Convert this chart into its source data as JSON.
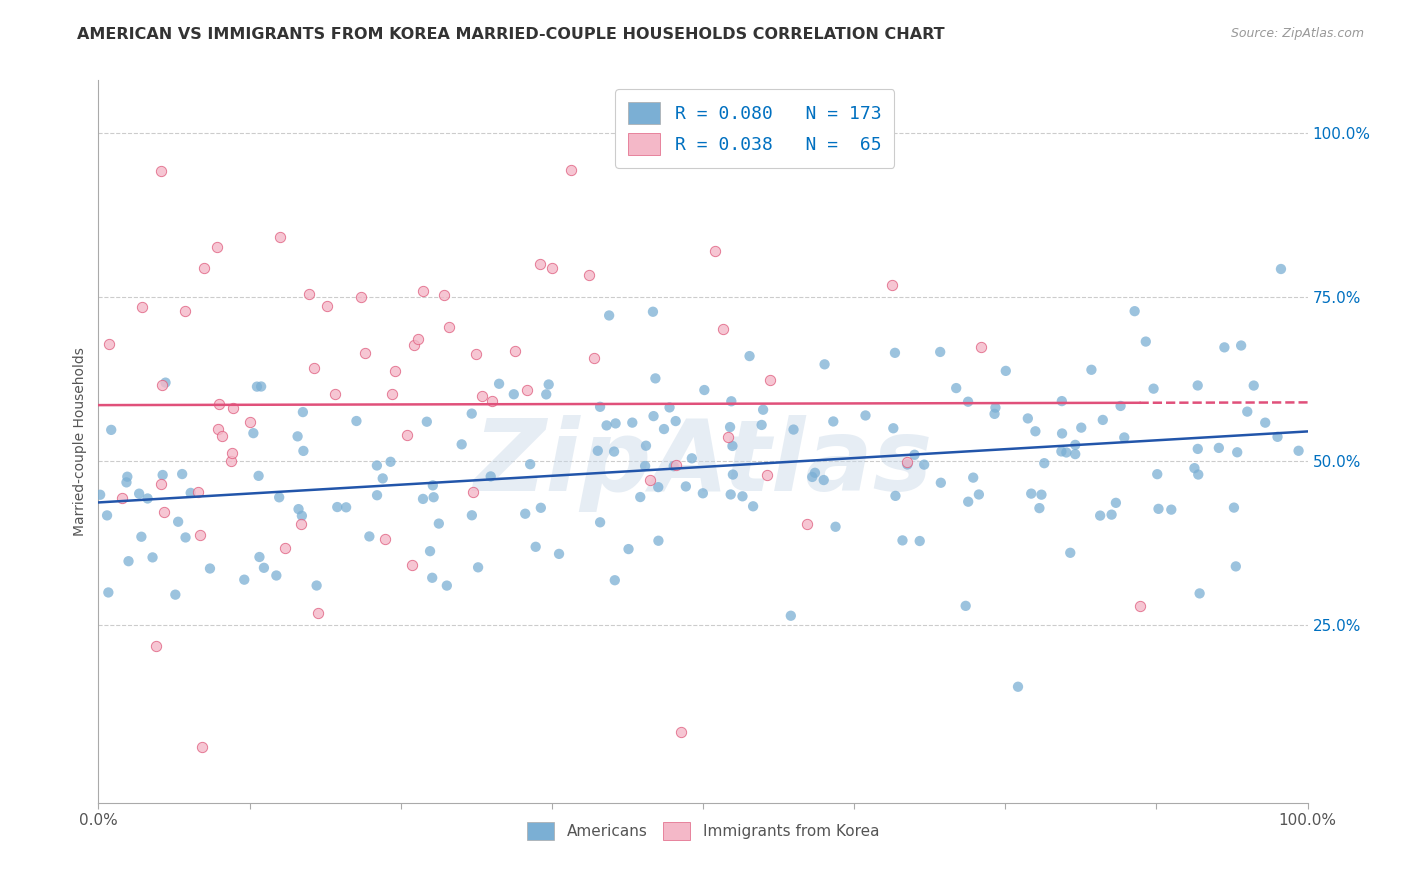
{
  "title": "AMERICAN VS IMMIGRANTS FROM KOREA MARRIED-COUPLE HOUSEHOLDS CORRELATION CHART",
  "source": "Source: ZipAtlas.com",
  "ylabel": "Married-couple Households",
  "ytick_vals": [
    0.25,
    0.5,
    0.75,
    1.0
  ],
  "ytick_labels": [
    "25.0%",
    "50.0%",
    "75.0%",
    "100.0%"
  ],
  "legend_line1": "R = 0.080   N = 173",
  "legend_line2": "R = 0.038   N =  65",
  "legend_label_color": "#0070c0",
  "americans_color": "#7bafd4",
  "koreans_color": "#f4b8c8",
  "koreans_edge_color": "#e06080",
  "trend_american_color": "#2255aa",
  "trend_korean_color": "#e0507a",
  "watermark": "ZipAtlas",
  "n_americans": 173,
  "n_koreans": 65,
  "xlim": [
    0.0,
    1.0
  ],
  "ylim": [
    -0.02,
    1.08
  ],
  "background_color": "#ffffff",
  "grid_color": "#cccccc",
  "title_color": "#333333",
  "source_color": "#999999"
}
